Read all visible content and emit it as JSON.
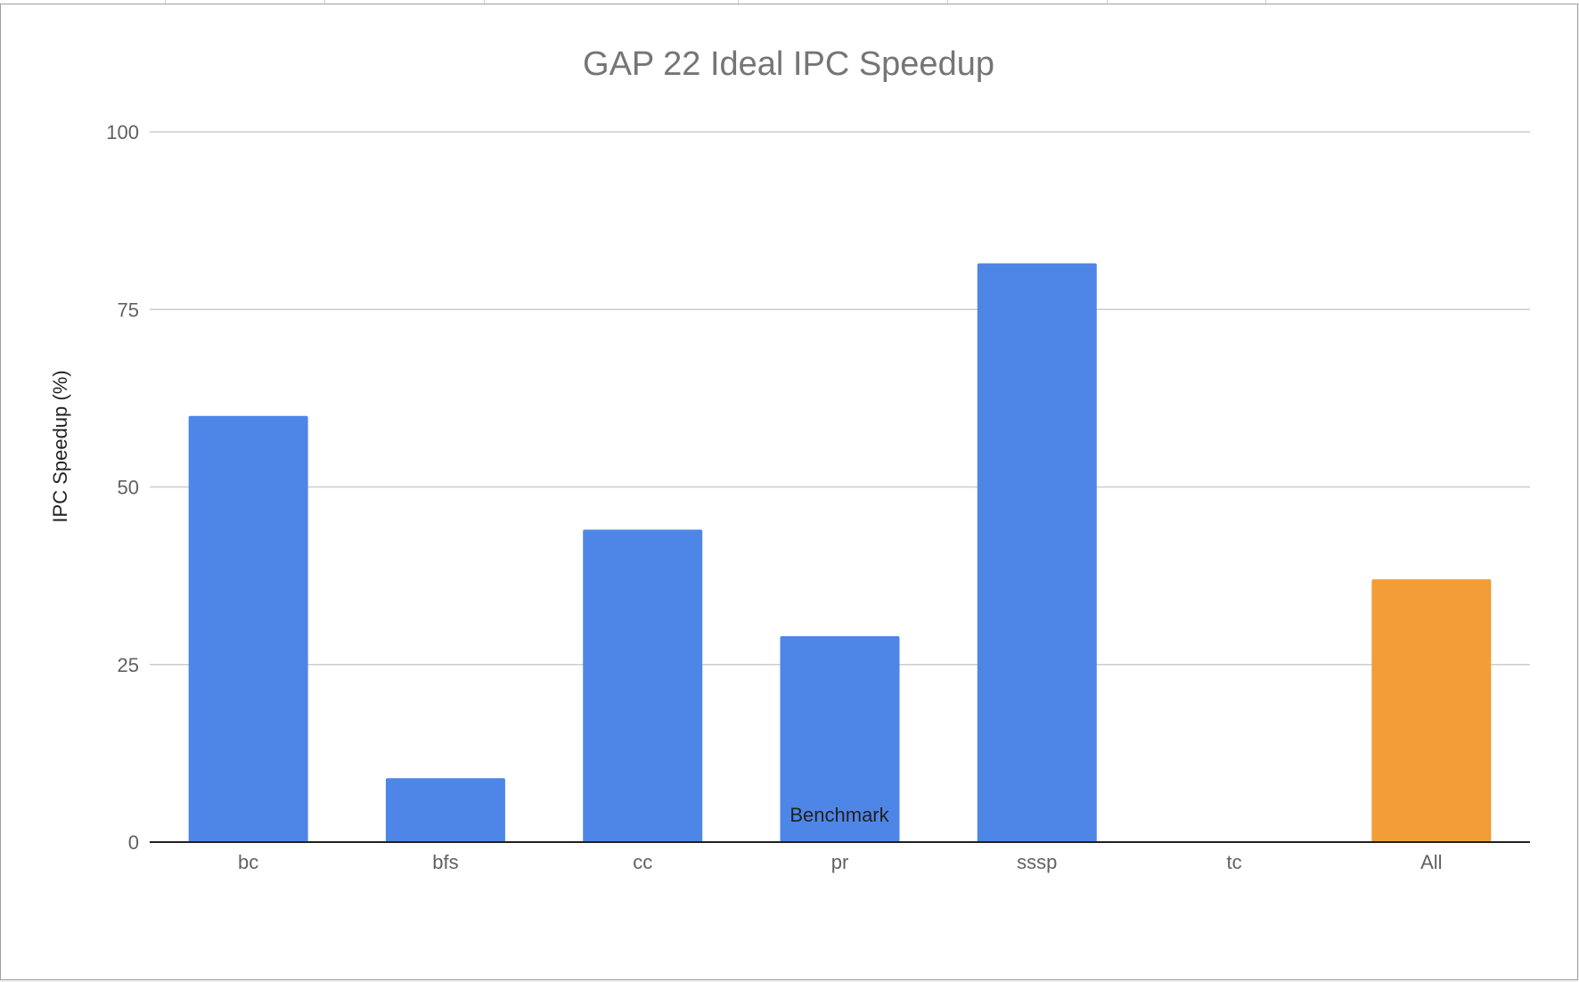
{
  "chart_data": {
    "type": "bar",
    "title": "GAP 22 Ideal IPC Speedup",
    "xlabel": "Benchmark",
    "ylabel": "IPC Speedup (%)",
    "categories": [
      "bc",
      "bfs",
      "cc",
      "pr",
      "sssp",
      "tc",
      "All"
    ],
    "values": [
      60,
      9,
      44,
      29,
      81.5,
      0,
      37
    ],
    "bar_colors": [
      "#4e86e8",
      "#4e86e8",
      "#4e86e8",
      "#4e86e8",
      "#4e86e8",
      "#4e86e8",
      "#f29d38"
    ],
    "ylim": [
      0,
      100
    ],
    "yticks": [
      0,
      25,
      50,
      75,
      100
    ],
    "grid": true,
    "legend": "none",
    "colors": {
      "series": "#4e86e8",
      "highlight": "#f29d38",
      "gridline": "#cccccc",
      "baseline": "#212121"
    }
  }
}
